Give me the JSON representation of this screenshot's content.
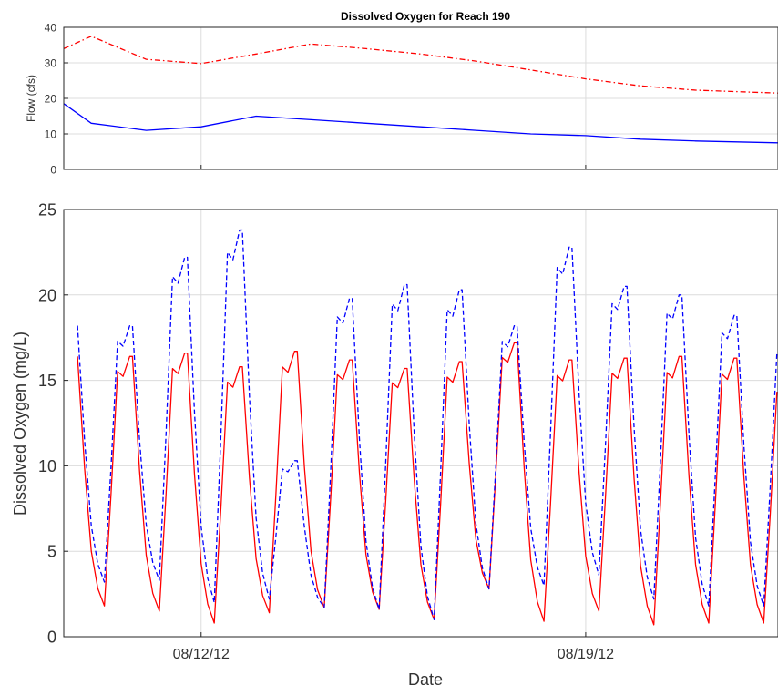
{
  "chart_data": [
    {
      "type": "line",
      "title": "Dissolved Oxygen for Reach 190",
      "xlabel": "",
      "ylabel": "Flow (cfs)",
      "ylim": [
        0,
        40
      ],
      "yticks": [
        0,
        10,
        20,
        30,
        40
      ],
      "xlim": [
        "08/09/12 12:00",
        "08/22/12 12:00"
      ],
      "xticks": [
        "08/12/12",
        "08/19/12"
      ],
      "grid": true,
      "legend": "none",
      "series": [
        {
          "color": "#ff0000",
          "style": "dashdot",
          "x": [
            "08/09/12 12:00",
            "08/10/12 00:00",
            "08/11/12 00:00",
            "08/12/12 00:00",
            "08/13/12 00:00",
            "08/14/12 00:00",
            "08/15/12 00:00",
            "08/16/12 00:00",
            "08/17/12 00:00",
            "08/18/12 00:00",
            "08/19/12 00:00",
            "08/20/12 00:00",
            "08/21/12 00:00",
            "08/22/12 12:00"
          ],
          "values": [
            34,
            37.5,
            31,
            29.8,
            32.5,
            35.3,
            34,
            32.5,
            30.5,
            28,
            25.5,
            23.5,
            22.3,
            21.5
          ]
        },
        {
          "color": "#0000ff",
          "style": "solid",
          "x": [
            "08/09/12 12:00",
            "08/10/12 00:00",
            "08/11/12 00:00",
            "08/12/12 00:00",
            "08/13/12 00:00",
            "08/14/12 00:00",
            "08/15/12 00:00",
            "08/16/12 00:00",
            "08/17/12 00:00",
            "08/18/12 00:00",
            "08/19/12 00:00",
            "08/20/12 00:00",
            "08/21/12 00:00",
            "08/22/12 12:00"
          ],
          "values": [
            18.5,
            13,
            11,
            12,
            15,
            14,
            13,
            12,
            11,
            10,
            9.5,
            8.5,
            8,
            7.5
          ]
        }
      ]
    },
    {
      "type": "line",
      "title": "",
      "xlabel": "Date",
      "ylabel": "Dissolved Oxygen (mg/L)",
      "ylim": [
        0,
        25
      ],
      "yticks": [
        0,
        5,
        10,
        15,
        20,
        25
      ],
      "xlim": [
        "08/09/12 12:00",
        "08/22/12 12:00"
      ],
      "xticks": [
        "08/12/12",
        "08/19/12"
      ],
      "grid": true,
      "legend": "none",
      "series": [
        {
          "color": "#ff0000",
          "style": "solid",
          "daily_values": [
            {
              "date": "08/10/12",
              "min": 1.8,
              "max": 16.4
            },
            {
              "date": "08/11/12",
              "min": 1.5,
              "max": 16.6
            },
            {
              "date": "08/12/12",
              "min": 0.8,
              "max": 15.8
            },
            {
              "date": "08/13/12",
              "min": 1.4,
              "max": 16.7
            },
            {
              "date": "08/14/12",
              "min": 1.7,
              "max": 16.2
            },
            {
              "date": "08/15/12",
              "min": 1.6,
              "max": 15.7
            },
            {
              "date": "08/16/12",
              "min": 1.0,
              "max": 16.1
            },
            {
              "date": "08/17/12",
              "min": 2.8,
              "max": 17.2
            },
            {
              "date": "08/18/12",
              "min": 0.9,
              "max": 16.2
            },
            {
              "date": "08/19/12",
              "min": 1.5,
              "max": 16.3
            },
            {
              "date": "08/20/12",
              "min": 0.7,
              "max": 16.4
            },
            {
              "date": "08/21/12",
              "min": 0.8,
              "max": 16.3
            },
            {
              "date": "08/22/12",
              "min": 0.8,
              "max": 15.2
            }
          ]
        },
        {
          "color": "#0000ff",
          "style": "dashed",
          "daily_values": [
            {
              "date": "08/10/12",
              "min": 3.2,
              "max": 18.2
            },
            {
              "date": "08/11/12",
              "min": 3.3,
              "max": 22.2
            },
            {
              "date": "08/12/12",
              "min": 2.0,
              "max": 23.8
            },
            {
              "date": "08/13/12",
              "min": 2.2,
              "max": 10.3
            },
            {
              "date": "08/14/12",
              "min": 1.7,
              "max": 19.8
            },
            {
              "date": "08/15/12",
              "min": 1.6,
              "max": 20.6
            },
            {
              "date": "08/16/12",
              "min": 1.0,
              "max": 20.3
            },
            {
              "date": "08/17/12",
              "min": 2.8,
              "max": 18.2
            },
            {
              "date": "08/18/12",
              "min": 3.0,
              "max": 22.8
            },
            {
              "date": "08/19/12",
              "min": 3.6,
              "max": 20.5
            },
            {
              "date": "08/20/12",
              "min": 2.2,
              "max": 20.0
            },
            {
              "date": "08/21/12",
              "min": 1.8,
              "max": 18.8
            },
            {
              "date": "08/22/12",
              "min": 1.8,
              "max": 17.6
            }
          ]
        }
      ]
    }
  ]
}
